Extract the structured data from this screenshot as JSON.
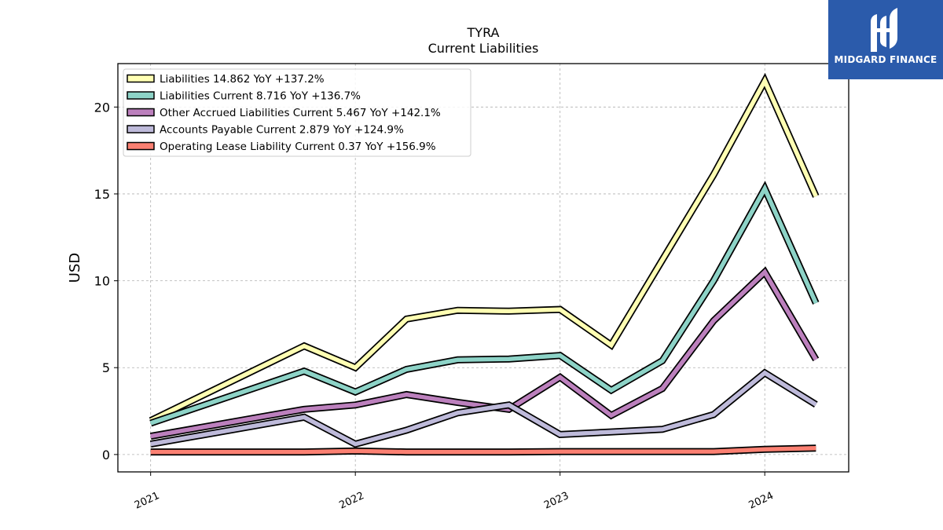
{
  "chart_data": {
    "type": "line",
    "title": "TYRA",
    "subtitle": "Current  Liabilities",
    "xlabel": "",
    "ylabel": "USD",
    "ylim": [
      -1,
      22.5
    ],
    "xlim": [
      2020.84,
      2024.41
    ],
    "y_ticks": [
      0,
      5,
      10,
      15,
      20
    ],
    "x_ticks": [
      {
        "value": 2021,
        "label": "2021"
      },
      {
        "value": 2022,
        "label": "2022"
      },
      {
        "value": 2023,
        "label": "2023"
      },
      {
        "value": 2024,
        "label": "2024"
      }
    ],
    "grid": true,
    "legend_position": "top-left",
    "x": [
      2021.0,
      2021.75,
      2022.0,
      2022.25,
      2022.5,
      2022.75,
      2023.0,
      2023.25,
      2023.5,
      2023.75,
      2024.0,
      2024.25
    ],
    "series": [
      {
        "name": "Liabilities",
        "legend": "Liabilities  14.862 YoY +137.2%",
        "color": "#ffffb3",
        "values": [
          1.95,
          6.25,
          5.0,
          7.8,
          8.3,
          8.25,
          8.35,
          6.3,
          11.2,
          16.1,
          21.5,
          14.862
        ]
      },
      {
        "name": "Liabilities Current",
        "legend": "Liabilities Current  8.716 YoY +136.7%",
        "color": "#8dd3c7",
        "values": [
          1.8,
          4.8,
          3.6,
          4.9,
          5.45,
          5.5,
          5.7,
          3.7,
          5.4,
          10.0,
          15.3,
          8.716
        ]
      },
      {
        "name": "Other Accrued Liabilities Current",
        "legend": "Other Accrued Liabilities Current  5.467 YoY +142.1%",
        "color": "#bc80bd",
        "values": [
          1.05,
          2.6,
          2.85,
          3.45,
          3.0,
          2.6,
          4.45,
          2.25,
          3.8,
          7.7,
          10.5,
          5.467
        ]
      },
      {
        "name": "Accounts Payable Current",
        "legend": "Accounts Payable Current  2.879 YoY +124.9%",
        "color": "#bebada",
        "values": [
          0.6,
          2.15,
          0.6,
          1.4,
          2.4,
          2.85,
          1.15,
          1.3,
          1.45,
          2.3,
          4.7,
          2.879
        ]
      },
      {
        "name": "Operating Lease Liability Current",
        "legend": "Operating Lease Liability Current  0.37 YoY +156.9%",
        "color": "#fb8072",
        "values": [
          0.15,
          0.15,
          0.2,
          0.15,
          0.15,
          0.15,
          0.17,
          0.17,
          0.17,
          0.17,
          0.3,
          0.37
        ]
      }
    ]
  },
  "logo": {
    "brand": "MIDGARD FINANCE",
    "color": "#2b5bab"
  }
}
